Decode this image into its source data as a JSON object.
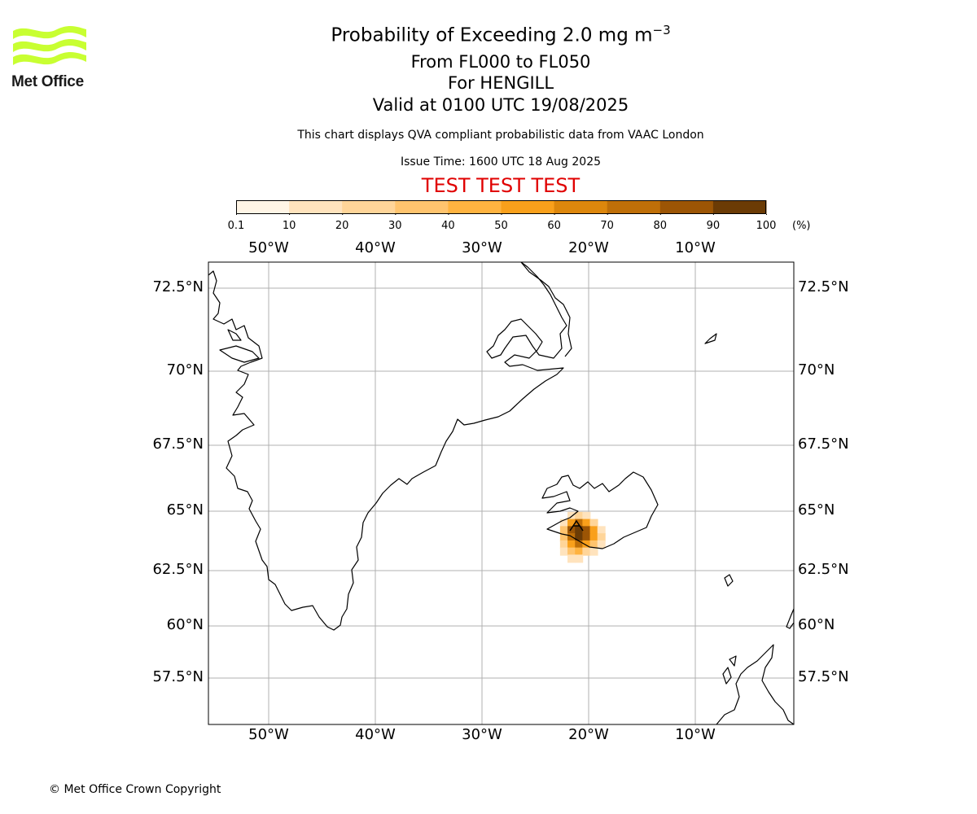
{
  "logo": {
    "name": "met-office-logo",
    "text": "Met Office",
    "color": "#c8ff32"
  },
  "title": {
    "main": "Probability of Exceeding 2.0 mg m",
    "main_sup": "−3",
    "levels": "From FL000 to FL050",
    "volcano": "For HENGILL",
    "valid": "Valid at 0100 UTC 19/08/2025"
  },
  "description": "This chart displays QVA compliant probabilistic data from VAAC London",
  "issue_time": "Issue Time: 1600 UTC 18 Aug 2025",
  "test_banner": {
    "text": "TEST TEST TEST",
    "color": "#e00000"
  },
  "colorbar": {
    "ticks": [
      "0.1",
      "10",
      "20",
      "30",
      "40",
      "50",
      "60",
      "70",
      "80",
      "90",
      "100"
    ],
    "unit": "(%)",
    "colors": [
      "#fff5e6",
      "#ffe3bd",
      "#ffd599",
      "#ffc46e",
      "#ffb340",
      "#f9a01b",
      "#dd870c",
      "#bf6f08",
      "#9c5505",
      "#6b3b05"
    ]
  },
  "map": {
    "lon_labels": [
      "50°W",
      "40°W",
      "30°W",
      "20°W",
      "10°W"
    ],
    "lat_labels": [
      "72.5°N",
      "70°N",
      "67.5°N",
      "65°N",
      "62.5°N",
      "60°N",
      "57.5°N"
    ],
    "grid_color": "#b0b0b0",
    "probability_field": [
      {
        "lon": -21.6,
        "lat": 64.8,
        "pct": 15
      },
      {
        "lon": -20.9,
        "lat": 64.8,
        "pct": 25
      },
      {
        "lon": -20.2,
        "lat": 64.8,
        "pct": 15
      },
      {
        "lon": -22.3,
        "lat": 64.5,
        "pct": 15
      },
      {
        "lon": -21.6,
        "lat": 64.5,
        "pct": 55
      },
      {
        "lon": -20.9,
        "lat": 64.5,
        "pct": 70
      },
      {
        "lon": -20.2,
        "lat": 64.5,
        "pct": 55
      },
      {
        "lon": -19.5,
        "lat": 64.5,
        "pct": 25
      },
      {
        "lon": -22.3,
        "lat": 64.2,
        "pct": 35
      },
      {
        "lon": -21.6,
        "lat": 64.2,
        "pct": 85
      },
      {
        "lon": -20.9,
        "lat": 64.2,
        "pct": 95
      },
      {
        "lon": -20.2,
        "lat": 64.2,
        "pct": 85
      },
      {
        "lon": -19.5,
        "lat": 64.2,
        "pct": 55
      },
      {
        "lon": -18.8,
        "lat": 64.2,
        "pct": 15
      },
      {
        "lon": -22.3,
        "lat": 63.9,
        "pct": 35
      },
      {
        "lon": -21.6,
        "lat": 63.9,
        "pct": 75
      },
      {
        "lon": -20.9,
        "lat": 63.9,
        "pct": 92
      },
      {
        "lon": -20.2,
        "lat": 63.9,
        "pct": 80
      },
      {
        "lon": -19.5,
        "lat": 63.9,
        "pct": 55
      },
      {
        "lon": -18.8,
        "lat": 63.9,
        "pct": 25
      },
      {
        "lon": -22.3,
        "lat": 63.6,
        "pct": 25
      },
      {
        "lon": -21.6,
        "lat": 63.6,
        "pct": 55
      },
      {
        "lon": -20.9,
        "lat": 63.6,
        "pct": 75
      },
      {
        "lon": -20.2,
        "lat": 63.6,
        "pct": 55
      },
      {
        "lon": -19.5,
        "lat": 63.6,
        "pct": 35
      },
      {
        "lon": -18.8,
        "lat": 63.6,
        "pct": 15
      },
      {
        "lon": -22.3,
        "lat": 63.3,
        "pct": 15
      },
      {
        "lon": -21.6,
        "lat": 63.3,
        "pct": 35
      },
      {
        "lon": -20.9,
        "lat": 63.3,
        "pct": 45
      },
      {
        "lon": -20.2,
        "lat": 63.3,
        "pct": 25
      },
      {
        "lon": -19.5,
        "lat": 63.3,
        "pct": 15
      },
      {
        "lon": -21.6,
        "lat": 63.0,
        "pct": 15
      },
      {
        "lon": -20.9,
        "lat": 63.0,
        "pct": 15
      }
    ]
  },
  "copyright": "© Met Office Crown Copyright"
}
